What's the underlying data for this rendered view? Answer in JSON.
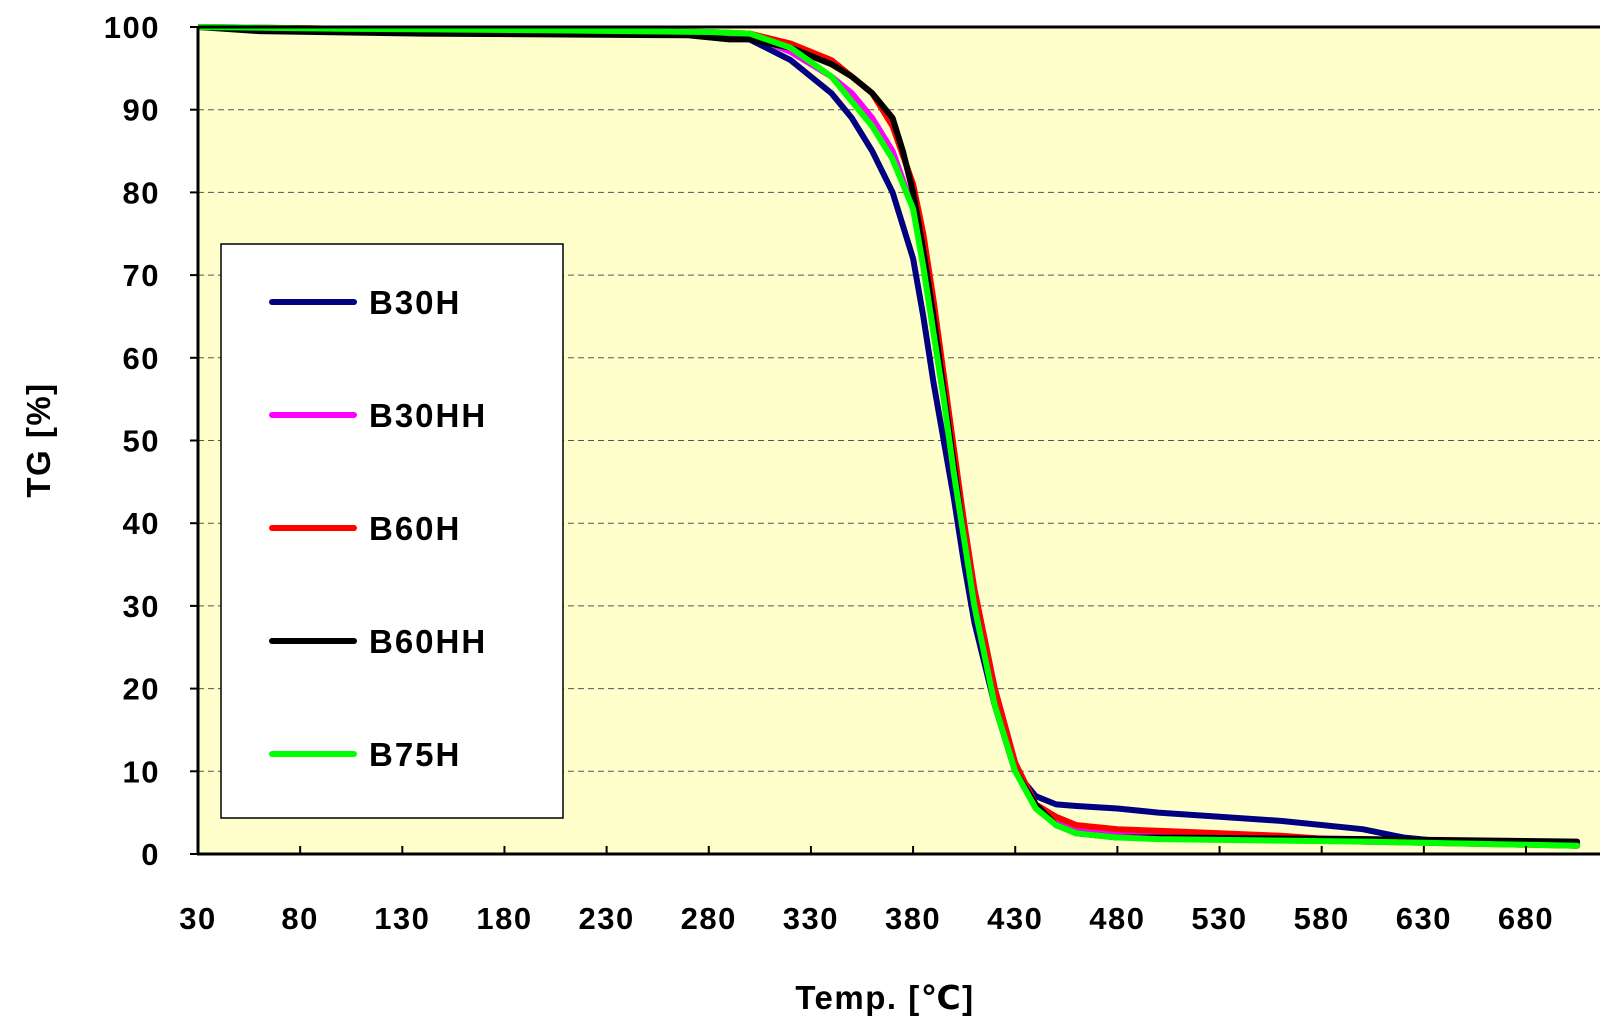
{
  "chart_data": {
    "type": "line",
    "title": "",
    "xlabel": "Temp. [℃]",
    "ylabel": "TG [%]",
    "xlim": [
      30,
      705
    ],
    "ylim": [
      0,
      100
    ],
    "x_ticks": [
      30,
      80,
      130,
      180,
      230,
      280,
      330,
      380,
      430,
      480,
      530,
      580,
      630,
      680
    ],
    "y_ticks": [
      0,
      10,
      20,
      30,
      40,
      50,
      60,
      70,
      80,
      90,
      100
    ],
    "grid": "horizontal-dashed",
    "legend_position": "left",
    "plot_background": "#ffffcc",
    "series": [
      {
        "name": "B30H",
        "color": "#000080",
        "x": [
          30,
          100,
          200,
          280,
          300,
          320,
          340,
          350,
          360,
          370,
          380,
          385,
          390,
          395,
          400,
          405,
          410,
          420,
          430,
          440,
          450,
          460,
          480,
          500,
          530,
          560,
          600,
          620,
          640,
          705
        ],
        "y": [
          100,
          99.5,
          99.3,
          99,
          98.5,
          96,
          92,
          89,
          85,
          80,
          72,
          65,
          57,
          50,
          43,
          35,
          28,
          18,
          10,
          7,
          6,
          5.8,
          5.5,
          5,
          4.5,
          4,
          3,
          2,
          1.5,
          1
        ]
      },
      {
        "name": "B30HH",
        "color": "#ff00ff",
        "x": [
          30,
          100,
          200,
          280,
          300,
          320,
          340,
          350,
          360,
          370,
          380,
          385,
          390,
          395,
          400,
          405,
          410,
          420,
          430,
          440,
          450,
          460,
          480,
          500,
          550,
          600,
          650,
          705
        ],
        "y": [
          100,
          99.8,
          99.6,
          99.4,
          99,
          97,
          94,
          92,
          89,
          85,
          78,
          72,
          64,
          56,
          48,
          40,
          32,
          20,
          11,
          6,
          4,
          3,
          2.5,
          2.3,
          2,
          1.8,
          1.5,
          1.2
        ]
      },
      {
        "name": "B60H",
        "color": "#ff0000",
        "x": [
          30,
          100,
          200,
          280,
          300,
          320,
          340,
          350,
          360,
          370,
          380,
          385,
          390,
          395,
          400,
          405,
          410,
          420,
          430,
          440,
          450,
          460,
          480,
          500,
          530,
          560,
          600,
          705
        ],
        "y": [
          100,
          99.8,
          99.6,
          99.4,
          99.2,
          98,
          96,
          94,
          92,
          88,
          81,
          75,
          67,
          58,
          49,
          40,
          32,
          20,
          11,
          6,
          4.5,
          3.5,
          3,
          2.8,
          2.5,
          2.2,
          1.5,
          1
        ]
      },
      {
        "name": "B60HH",
        "color": "#000000",
        "x": [
          30,
          60,
          140,
          270,
          290,
          300,
          320,
          340,
          350,
          360,
          370,
          375,
          380,
          385,
          390,
          395,
          400,
          405,
          410,
          420,
          430,
          440,
          450,
          460,
          480,
          500,
          600,
          705
        ],
        "y": [
          100,
          99.5,
          99.2,
          99,
          98.5,
          98.5,
          97.5,
          95.5,
          94,
          92,
          89,
          85,
          80,
          73,
          65,
          56,
          47,
          38,
          30,
          18,
          10,
          6,
          3.5,
          2.5,
          2,
          2,
          1.8,
          1.5
        ]
      },
      {
        "name": "B75H",
        "color": "#00ff00",
        "x": [
          30,
          100,
          200,
          280,
          300,
          320,
          340,
          350,
          360,
          370,
          380,
          385,
          390,
          395,
          400,
          405,
          410,
          420,
          430,
          440,
          450,
          460,
          480,
          500,
          600,
          705
        ],
        "y": [
          100,
          99.8,
          99.6,
          99.4,
          99.2,
          97.5,
          94,
          91,
          88,
          84,
          78,
          71,
          63,
          55,
          46,
          38,
          30,
          18,
          10,
          5.5,
          3.5,
          2.5,
          2,
          1.8,
          1.5,
          1
        ]
      }
    ]
  }
}
